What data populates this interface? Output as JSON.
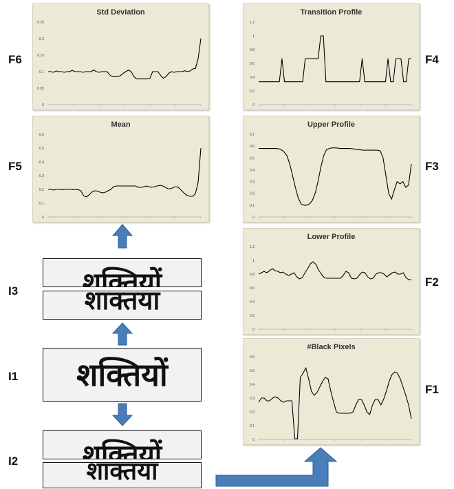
{
  "colors": {
    "panel_bg": "#ecead7",
    "arrow": "#4a7ebb",
    "line": "#000000"
  },
  "charts": [
    {
      "id": "f6",
      "title": "Std Deviation",
      "label": "F6",
      "yticks": [
        "0.25",
        "0.2",
        "0.15",
        "0.1",
        "0.05",
        "0"
      ],
      "ylim": [
        0,
        0.25
      ],
      "values": [
        0.1,
        0.1,
        0.098,
        0.102,
        0.1,
        0.1,
        0.098,
        0.1,
        0.1,
        0.104,
        0.1,
        0.1,
        0.1,
        0.098,
        0.1,
        0.1,
        0.1,
        0.105,
        0.1,
        0.098,
        0.1,
        0.1,
        0.1,
        0.09,
        0.085,
        0.085,
        0.085,
        0.088,
        0.095,
        0.1,
        0.105,
        0.1,
        0.085,
        0.078,
        0.078,
        0.078,
        0.078,
        0.078,
        0.08,
        0.1,
        0.1,
        0.1,
        0.088,
        0.08,
        0.085,
        0.095,
        0.1,
        0.098,
        0.1,
        0.1,
        0.1,
        0.103,
        0.1,
        0.102,
        0.108,
        0.11,
        0.14,
        0.2
      ]
    },
    {
      "id": "f4",
      "title": "Transition Profile",
      "label": "F4",
      "yticks": [
        "1.2",
        "1",
        "0.8",
        "0.6",
        "0.4",
        "0.2",
        "0"
      ],
      "ylim": [
        0,
        1.2
      ],
      "values": [
        0.333,
        0.333,
        0.333,
        0.333,
        0.333,
        0.333,
        0.333,
        0.333,
        0.333,
        0.667,
        0.333,
        0.333,
        0.333,
        0.333,
        0.333,
        0.333,
        0.333,
        0.333,
        0.667,
        0.667,
        0.667,
        0.667,
        0.667,
        0.667,
        1.0,
        1.0,
        0.333,
        0.333,
        0.333,
        0.333,
        0.333,
        0.333,
        0.333,
        0.333,
        0.333,
        0.333,
        0.333,
        0.333,
        0.333,
        0.333,
        0.667,
        0.333,
        0.333,
        0.333,
        0.333,
        0.333,
        0.333,
        0.333,
        0.333,
        0.333,
        0.667,
        0.333,
        0.333,
        0.667,
        0.667,
        0.667,
        0.333,
        0.333,
        0.667,
        0.667
      ]
    },
    {
      "id": "f5",
      "title": "Mean",
      "label": "F5",
      "yticks": [
        "0.6",
        "0.5",
        "0.4",
        "0.3",
        "0.2",
        "0.1",
        "0"
      ],
      "ylim": [
        0,
        0.6
      ],
      "values": [
        0.2,
        0.2,
        0.195,
        0.2,
        0.2,
        0.198,
        0.2,
        0.2,
        0.2,
        0.198,
        0.2,
        0.198,
        0.19,
        0.155,
        0.145,
        0.16,
        0.18,
        0.19,
        0.188,
        0.18,
        0.175,
        0.18,
        0.19,
        0.2,
        0.22,
        0.225,
        0.225,
        0.225,
        0.225,
        0.225,
        0.225,
        0.225,
        0.225,
        0.215,
        0.215,
        0.218,
        0.225,
        0.22,
        0.215,
        0.22,
        0.225,
        0.23,
        0.225,
        0.215,
        0.205,
        0.205,
        0.215,
        0.22,
        0.21,
        0.19,
        0.17,
        0.155,
        0.15,
        0.15,
        0.17,
        0.25,
        0.5
      ]
    },
    {
      "id": "f3",
      "title": "Upper Profile",
      "label": "F3",
      "yticks": [
        "0.7",
        "0.6",
        "0.5",
        "0.4",
        "0.3",
        "0.2",
        "0.1",
        "0"
      ],
      "ylim": [
        0,
        0.7
      ],
      "values": [
        0.58,
        0.58,
        0.58,
        0.58,
        0.58,
        0.58,
        0.58,
        0.578,
        0.57,
        0.55,
        0.52,
        0.45,
        0.35,
        0.25,
        0.16,
        0.11,
        0.1,
        0.1,
        0.11,
        0.14,
        0.2,
        0.3,
        0.42,
        0.52,
        0.57,
        0.58,
        0.585,
        0.585,
        0.583,
        0.58,
        0.58,
        0.58,
        0.58,
        0.578,
        0.575,
        0.57,
        0.568,
        0.565,
        0.565,
        0.565,
        0.565,
        0.565,
        0.565,
        0.56,
        0.5,
        0.35,
        0.2,
        0.15,
        0.23,
        0.3,
        0.28,
        0.3,
        0.25,
        0.27,
        0.45
      ]
    },
    {
      "id": "f2",
      "title": "Lower Profile",
      "label": "F2",
      "yticks": [
        "1.2",
        "1",
        "0.8",
        "0.6",
        "0.4",
        "0.2",
        "0"
      ],
      "ylim": [
        0,
        1.2
      ],
      "values": [
        0.8,
        0.82,
        0.84,
        0.82,
        0.85,
        0.88,
        0.85,
        0.84,
        0.82,
        0.83,
        0.8,
        0.78,
        0.8,
        0.82,
        0.76,
        0.73,
        0.75,
        0.82,
        0.88,
        0.95,
        0.98,
        0.94,
        0.86,
        0.8,
        0.75,
        0.74,
        0.74,
        0.74,
        0.74,
        0.74,
        0.74,
        0.78,
        0.84,
        0.82,
        0.74,
        0.73,
        0.74,
        0.79,
        0.83,
        0.82,
        0.76,
        0.73,
        0.74,
        0.8,
        0.82,
        0.82,
        0.8,
        0.76,
        0.79,
        0.82,
        0.83,
        0.8,
        0.8,
        0.82,
        0.75,
        0.72,
        0.72
      ]
    },
    {
      "id": "f1",
      "title": "#Black Pixels",
      "label": "F1",
      "yticks": [
        "0.6",
        "0.5",
        "0.4",
        "0.3",
        "0.2",
        "0.1",
        "0"
      ],
      "ylim": [
        0,
        0.6
      ],
      "values": [
        0.27,
        0.3,
        0.3,
        0.28,
        0.28,
        0.3,
        0.31,
        0.3,
        0.28,
        0.27,
        0.28,
        0.28,
        0.28,
        0.005,
        0.005,
        0.45,
        0.48,
        0.52,
        0.44,
        0.35,
        0.32,
        0.34,
        0.38,
        0.42,
        0.45,
        0.44,
        0.35,
        0.27,
        0.2,
        0.19,
        0.19,
        0.19,
        0.19,
        0.19,
        0.2,
        0.25,
        0.29,
        0.29,
        0.25,
        0.2,
        0.18,
        0.25,
        0.29,
        0.29,
        0.25,
        0.29,
        0.35,
        0.42,
        0.47,
        0.49,
        0.48,
        0.44,
        0.38,
        0.32,
        0.25,
        0.15
      ]
    }
  ],
  "images": [
    {
      "id": "i1",
      "label": "I1",
      "text": "शक्तियों"
    },
    {
      "id": "i2",
      "label": "I2",
      "upper": "शक्तियों",
      "lower": "शाक्तया"
    },
    {
      "id": "i3",
      "label": "I3",
      "upper": "शक्तियों",
      "lower": "शाक्तया"
    }
  ]
}
